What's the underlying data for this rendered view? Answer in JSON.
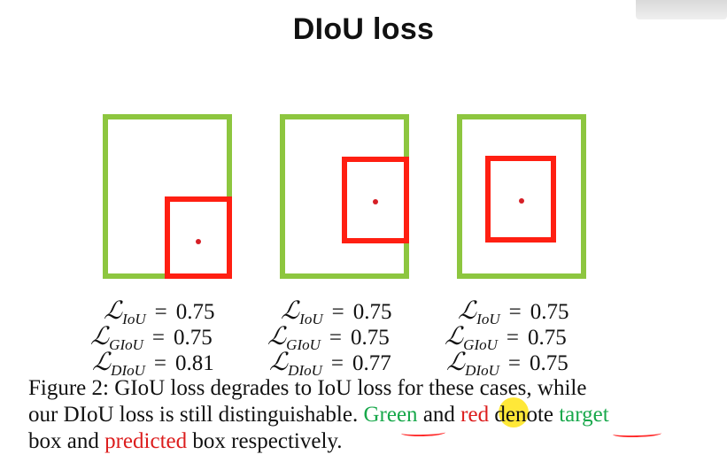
{
  "title": "DIoU loss",
  "figure": {
    "formulas": [
      {
        "iou": {
          "symbol": "ℒ",
          "subscript": "IoU",
          "value": "0.75"
        },
        "giou": {
          "symbol": "ℒ",
          "subscript": "GIoU",
          "value": "0.75"
        },
        "diou": {
          "symbol": "ℒ",
          "subscript": "DIoU",
          "value": "0.81"
        }
      },
      {
        "iou": {
          "symbol": "ℒ",
          "subscript": "IoU",
          "value": "0.75"
        },
        "giou": {
          "symbol": "ℒ",
          "subscript": "GIoU",
          "value": "0.75"
        },
        "diou": {
          "symbol": "ℒ",
          "subscript": "DIoU",
          "value": "0.77"
        }
      },
      {
        "iou": {
          "symbol": "ℒ",
          "subscript": "IoU",
          "value": "0.75"
        },
        "giou": {
          "symbol": "ℒ",
          "subscript": "GIoU",
          "value": "0.75"
        },
        "diou": {
          "symbol": "ℒ",
          "subscript": "DIoU",
          "value": "0.75"
        }
      }
    ],
    "colors": {
      "target": "#8dc63f",
      "predicted": "#ff1f12",
      "center_dot": "#d61f26",
      "caption_green": "#18a84b",
      "caption_red": "#dc1d1d",
      "highlight": "#ffe200"
    }
  },
  "caption": {
    "line1": "Figure 2: GIoU loss degrades to IoU loss for these cases, while",
    "line2_prefix": "our DIoU loss is still distinguishable. ",
    "green_word": "Green",
    "middle_and": " and ",
    "red_word": "red",
    "line2_denote": " denote ",
    "target_word": "target",
    "line3_box": "box and ",
    "predicted_word": "predicted",
    "line3_suffix": " box respectively."
  }
}
